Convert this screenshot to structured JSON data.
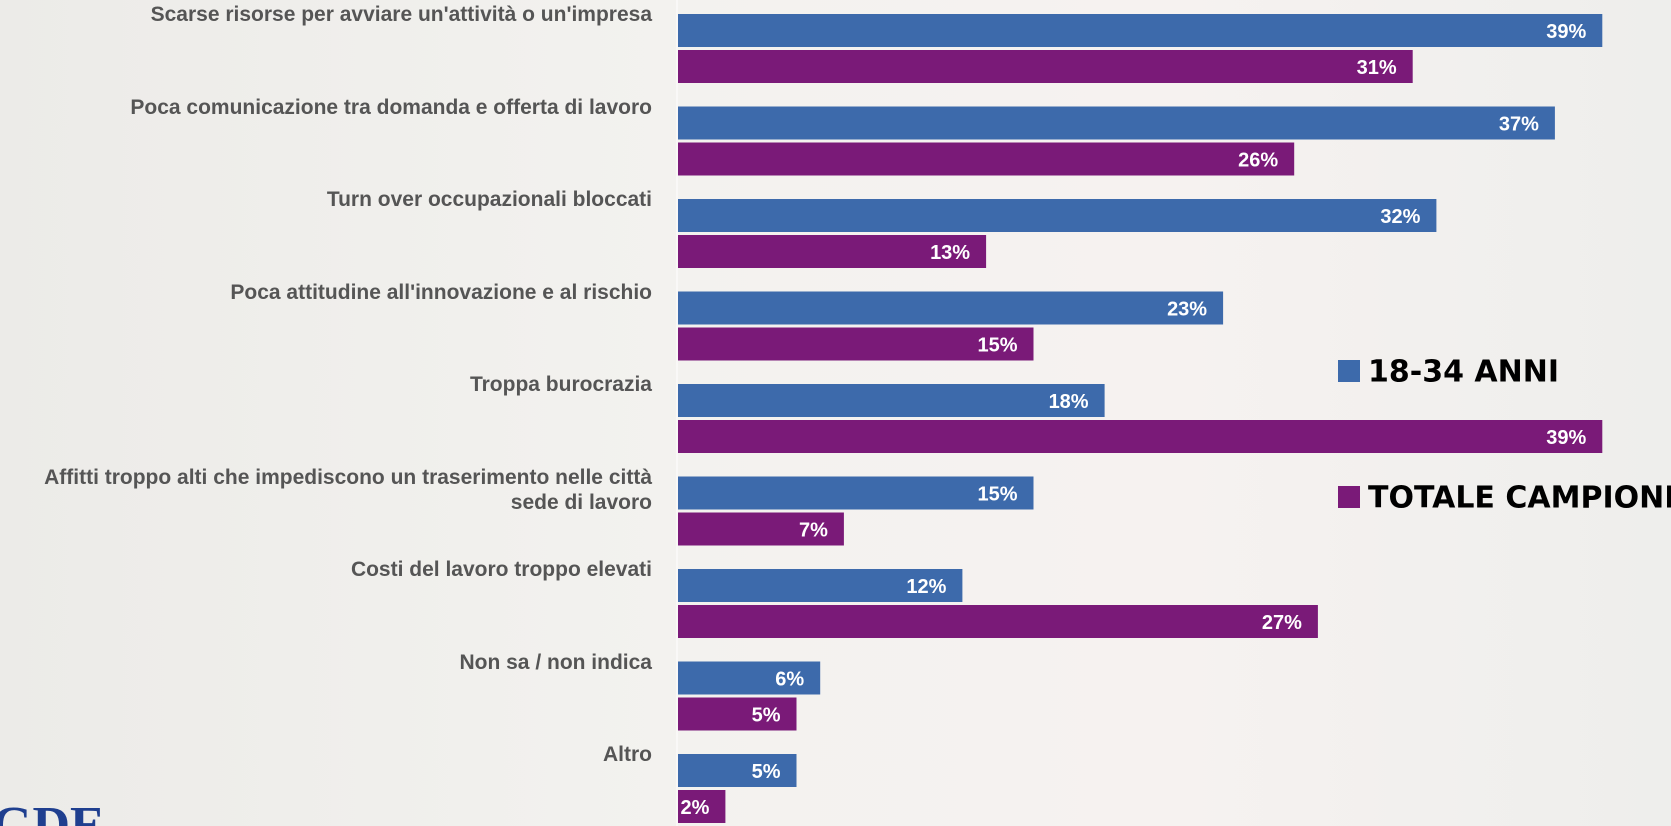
{
  "chart_data": {
    "type": "bar",
    "orientation": "horizontal",
    "categories": [
      "Scarse risorse per avviare un'attività o un'impresa",
      "Poca comunicazione tra domanda e offerta di lavoro",
      "Turn over occupazionali bloccati",
      "Poca attitudine all'innovazione e al rischio",
      "Troppa burocrazia",
      "Affitti troppo alti che impediscono un traserimento nelle città sede di lavoro",
      "Costi del lavoro troppo elevati",
      "Non sa / non indica",
      "Altro"
    ],
    "series": [
      {
        "name": "18-34 ANNI",
        "color": "#3d6aab",
        "values": [
          39,
          37,
          32,
          23,
          18,
          15,
          12,
          6,
          5
        ],
        "value_labels": [
          "39%",
          "37%",
          "32%",
          "23%",
          "18%",
          "15%",
          "12%",
          "6%",
          "5%"
        ]
      },
      {
        "name": "TOTALE CAMPIONE",
        "color": "#7a1a78",
        "values": [
          31,
          26,
          13,
          15,
          39,
          7,
          27,
          5,
          2
        ],
        "value_labels": [
          "31%",
          "26%",
          "13%",
          "15%",
          "39%",
          "7%",
          "27%",
          "5%",
          "2%"
        ]
      }
    ],
    "xlim": [
      0,
      42
    ],
    "logo": "GDE"
  }
}
